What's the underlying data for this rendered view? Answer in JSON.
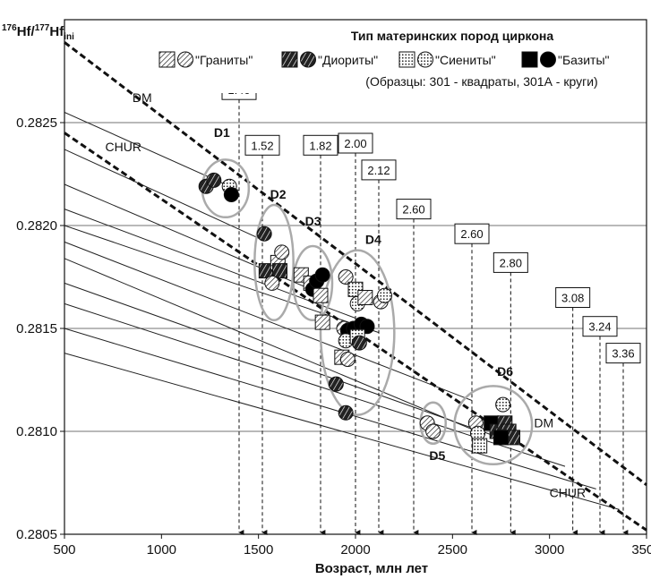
{
  "chart_data": {
    "type": "scatter",
    "ylabel_parts": {
      "sup1": "176",
      "main1": "Hf/",
      "sup2": "177",
      "main2": "Hf",
      "sub": "ini"
    },
    "xlabel": "Возраст, млн лет",
    "xlim": [
      500,
      3500
    ],
    "ylim": [
      0.2805,
      0.283
    ],
    "x_ticks": [
      500,
      1000,
      1500,
      2000,
      2500,
      3000,
      3500
    ],
    "y_ticks": [
      0.2805,
      0.281,
      0.2815,
      0.282,
      0.2825
    ],
    "y_tick_labels": [
      "0.2805",
      "0.2810",
      "0.2815",
      "0.2820",
      "0.2825"
    ],
    "grid": "horizontal",
    "legend": {
      "title": "Тип материнских пород циркона",
      "entries": [
        {
          "label": "\"Граниты\"",
          "pattern": "hatch"
        },
        {
          "label": "\"Диориты\"",
          "pattern": "dark-cross"
        },
        {
          "label": "\"Сиениты\"",
          "pattern": "dots"
        },
        {
          "label": "\"Базиты\"",
          "pattern": "solid"
        }
      ],
      "note": "(Образцы: 301 - квадраты, 301А - круги)"
    },
    "reference_lines": [
      {
        "name": "DM",
        "points": [
          [
            500,
            0.28289
          ],
          [
            3500,
            0.28074
          ]
        ]
      },
      {
        "name": "CHUR",
        "points": [
          [
            500,
            0.28245
          ],
          [
            3500,
            0.28052
          ]
        ]
      }
    ],
    "evolution_lines": [
      {
        "points": [
          [
            500,
            0.28255
          ],
          [
            1400,
            0.28217
          ]
        ]
      },
      {
        "points": [
          [
            500,
            0.28237
          ],
          [
            1520,
            0.28193
          ]
        ]
      },
      {
        "points": [
          [
            500,
            0.2822
          ],
          [
            1820,
            0.28167
          ]
        ]
      },
      {
        "points": [
          [
            500,
            0.28208
          ],
          [
            2000,
            0.28155
          ]
        ]
      },
      {
        "points": [
          [
            500,
            0.282
          ],
          [
            2120,
            0.28148
          ]
        ]
      },
      {
        "points": [
          [
            500,
            0.28192
          ],
          [
            2600,
            0.28115
          ]
        ]
      },
      {
        "points": [
          [
            500,
            0.28184
          ],
          [
            2600,
            0.28101
          ]
        ]
      },
      {
        "points": [
          [
            500,
            0.28172
          ],
          [
            2800,
            0.28095
          ]
        ]
      },
      {
        "points": [
          [
            500,
            0.28162
          ],
          [
            3080,
            0.28083
          ]
        ]
      },
      {
        "points": [
          [
            500,
            0.2815
          ],
          [
            3240,
            0.28072
          ]
        ]
      },
      {
        "points": [
          [
            500,
            0.28138
          ],
          [
            3360,
            0.28062
          ]
        ]
      }
    ],
    "model_ages": [
      {
        "label": "1.40",
        "x": 1400,
        "box_y": 0.28266
      },
      {
        "label": "1.52",
        "x": 1520,
        "box_y": 0.28239
      },
      {
        "label": "1.82",
        "x": 1820,
        "box_y": 0.28239
      },
      {
        "label": "2.00",
        "x": 2000,
        "box_y": 0.2824
      },
      {
        "label": "2.12",
        "x": 2120,
        "box_y": 0.28227
      },
      {
        "label": "2.60",
        "x": 2300,
        "box_y": 0.28208
      },
      {
        "label": "2.60",
        "x": 2600,
        "box_y": 0.28196
      },
      {
        "label": "2.80",
        "x": 2800,
        "box_y": 0.28182
      },
      {
        "label": "3.08",
        "x": 3120,
        "box_y": 0.28165
      },
      {
        "label": "3.24",
        "x": 3260,
        "box_y": 0.28151
      },
      {
        "label": "3.36",
        "x": 3380,
        "box_y": 0.28138
      }
    ],
    "groups": [
      {
        "label": "D1",
        "cx": 1330,
        "cy": 0.28218,
        "rx": 120,
        "ry": 0.00014,
        "label_x": 1270,
        "label_y": 0.28243
      },
      {
        "label": "D2",
        "cx": 1580,
        "cy": 0.28182,
        "rx": 100,
        "ry": 0.00028,
        "label_x": 1560,
        "label_y": 0.28213
      },
      {
        "label": "D3",
        "cx": 1780,
        "cy": 0.28172,
        "rx": 100,
        "ry": 0.00018,
        "label_x": 1740,
        "label_y": 0.282
      },
      {
        "label": "D4",
        "cx": 2010,
        "cy": 0.28148,
        "rx": 190,
        "ry": 0.0004,
        "label_x": 2050,
        "label_y": 0.28191
      },
      {
        "label": "D5",
        "cx": 2400,
        "cy": 0.28104,
        "rx": 65,
        "ry": 0.0001,
        "label_x": 2380,
        "label_y": 0.28086
      },
      {
        "label": "D6",
        "cx": 2710,
        "cy": 0.28103,
        "rx": 200,
        "ry": 0.00019,
        "label_x": 2730,
        "label_y": 0.28127
      }
    ],
    "points": [
      {
        "x": 1230,
        "y": 0.28219,
        "type": "dark-cross",
        "shape": "circle"
      },
      {
        "x": 1270,
        "y": 0.28222,
        "type": "dark-cross",
        "shape": "circle"
      },
      {
        "x": 1350,
        "y": 0.28219,
        "type": "dots",
        "shape": "circle"
      },
      {
        "x": 1360,
        "y": 0.28215,
        "type": "solid",
        "shape": "circle"
      },
      {
        "x": 1530,
        "y": 0.28196,
        "type": "dark-cross",
        "shape": "circle"
      },
      {
        "x": 1540,
        "y": 0.28178,
        "type": "dark-cross",
        "shape": "square"
      },
      {
        "x": 1600,
        "y": 0.28182,
        "type": "hatch",
        "shape": "square"
      },
      {
        "x": 1610,
        "y": 0.28178,
        "type": "dark-cross",
        "shape": "square"
      },
      {
        "x": 1620,
        "y": 0.28187,
        "type": "hatch",
        "shape": "circle"
      },
      {
        "x": 1570,
        "y": 0.28172,
        "type": "hatch",
        "shape": "circle"
      },
      {
        "x": 1720,
        "y": 0.28176,
        "type": "hatch",
        "shape": "square"
      },
      {
        "x": 1770,
        "y": 0.28172,
        "type": "hatch",
        "shape": "square"
      },
      {
        "x": 1780,
        "y": 0.28169,
        "type": "solid",
        "shape": "circle"
      },
      {
        "x": 1800,
        "y": 0.28173,
        "type": "solid",
        "shape": "circle"
      },
      {
        "x": 1830,
        "y": 0.28176,
        "type": "solid",
        "shape": "circle"
      },
      {
        "x": 1820,
        "y": 0.28166,
        "type": "hatch",
        "shape": "square"
      },
      {
        "x": 1830,
        "y": 0.28153,
        "type": "hatch",
        "shape": "square"
      },
      {
        "x": 1950,
        "y": 0.28175,
        "type": "hatch",
        "shape": "circle"
      },
      {
        "x": 2000,
        "y": 0.28169,
        "type": "dots",
        "shape": "square"
      },
      {
        "x": 2010,
        "y": 0.28162,
        "type": "dots",
        "shape": "circle"
      },
      {
        "x": 2050,
        "y": 0.28165,
        "type": "hatch",
        "shape": "square"
      },
      {
        "x": 2130,
        "y": 0.28163,
        "type": "hatch",
        "shape": "circle"
      },
      {
        "x": 2150,
        "y": 0.28166,
        "type": "dots",
        "shape": "circle"
      },
      {
        "x": 1940,
        "y": 0.2815,
        "type": "hatch",
        "shape": "circle"
      },
      {
        "x": 1960,
        "y": 0.28149,
        "type": "solid",
        "shape": "circle"
      },
      {
        "x": 1990,
        "y": 0.2815,
        "type": "solid",
        "shape": "circle"
      },
      {
        "x": 2030,
        "y": 0.28152,
        "type": "solid",
        "shape": "circle"
      },
      {
        "x": 2060,
        "y": 0.28151,
        "type": "solid",
        "shape": "circle"
      },
      {
        "x": 1950,
        "y": 0.28144,
        "type": "dots",
        "shape": "circle"
      },
      {
        "x": 2010,
        "y": 0.28146,
        "type": "dots",
        "shape": "square"
      },
      {
        "x": 2020,
        "y": 0.28143,
        "type": "dark-cross",
        "shape": "circle"
      },
      {
        "x": 1930,
        "y": 0.28136,
        "type": "hatch",
        "shape": "square"
      },
      {
        "x": 1960,
        "y": 0.28135,
        "type": "hatch",
        "shape": "circle"
      },
      {
        "x": 1900,
        "y": 0.28123,
        "type": "dark-cross",
        "shape": "circle"
      },
      {
        "x": 1950,
        "y": 0.28109,
        "type": "dark-cross",
        "shape": "circle"
      },
      {
        "x": 2370,
        "y": 0.28104,
        "type": "hatch",
        "shape": "circle"
      },
      {
        "x": 2400,
        "y": 0.281,
        "type": "hatch",
        "shape": "circle"
      },
      {
        "x": 2620,
        "y": 0.28104,
        "type": "hatch",
        "shape": "circle"
      },
      {
        "x": 2630,
        "y": 0.28099,
        "type": "dots",
        "shape": "circle"
      },
      {
        "x": 2640,
        "y": 0.28093,
        "type": "dots",
        "shape": "square"
      },
      {
        "x": 2700,
        "y": 0.28104,
        "type": "solid",
        "shape": "square"
      },
      {
        "x": 2730,
        "y": 0.281,
        "type": "dark-cross",
        "shape": "square"
      },
      {
        "x": 2760,
        "y": 0.28113,
        "type": "dots",
        "shape": "circle"
      },
      {
        "x": 2770,
        "y": 0.28104,
        "type": "dark-cross",
        "shape": "square"
      },
      {
        "x": 2790,
        "y": 0.281,
        "type": "dark-cross",
        "shape": "square"
      },
      {
        "x": 2810,
        "y": 0.28097,
        "type": "dark-cross",
        "shape": "square"
      },
      {
        "x": 2750,
        "y": 0.28097,
        "type": "solid",
        "shape": "square"
      }
    ],
    "line_labels": [
      {
        "text": "DM",
        "x": 850,
        "y": 0.2826
      },
      {
        "text": "CHUR",
        "x": 710,
        "y": 0.28236
      },
      {
        "text": "DM",
        "x": 2920,
        "y": 0.28102
      },
      {
        "text": "CHUR",
        "x": 3000,
        "y": 0.28068
      }
    ]
  }
}
